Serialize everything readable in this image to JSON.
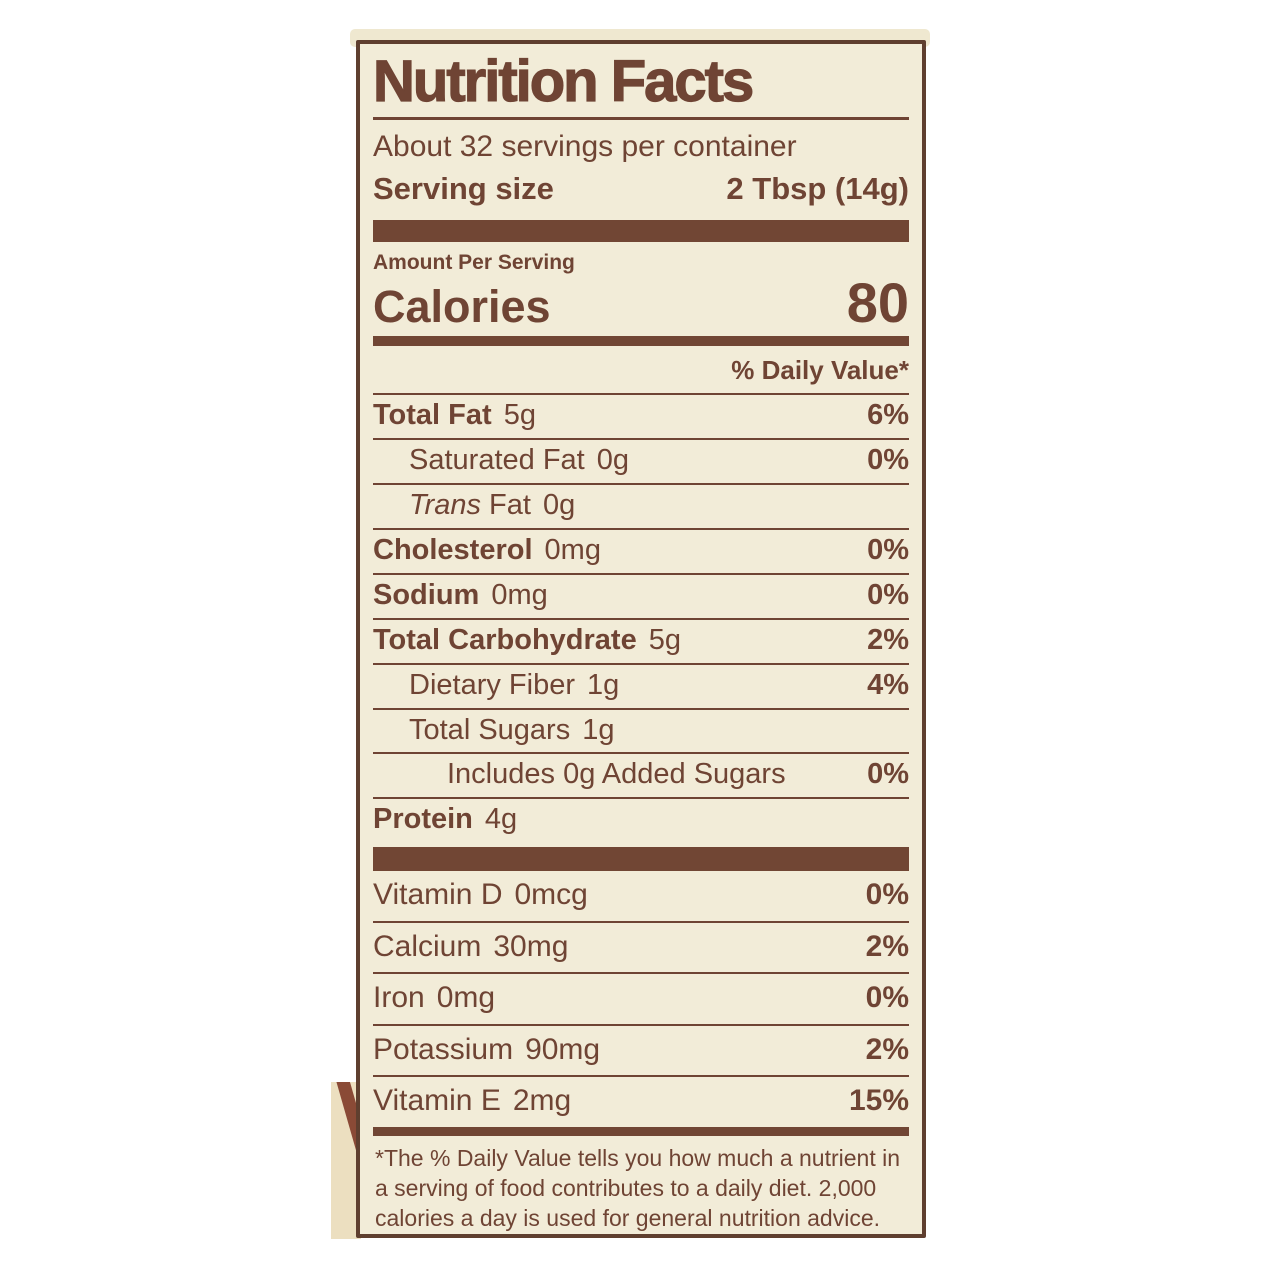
{
  "colors": {
    "text_brown": "#6f4434",
    "bar_brown": "#714634",
    "border_brown": "#5f3f2f",
    "panel_cream": "#f2ecd8",
    "package_tan": "#ecdfc0",
    "stripe_red_brown": "#8a4a36",
    "page_background": "#ffffff"
  },
  "header": {
    "title": "Nutrition Facts",
    "servings_per_container": "About 32 servings per container",
    "serving_size_label": "Serving size",
    "serving_size_value": "2 Tbsp (14g)"
  },
  "calories": {
    "amount_per_serving": "Amount Per Serving",
    "label": "Calories",
    "value": "80"
  },
  "daily_value_header": "% Daily Value*",
  "nutrients": [
    {
      "label": "Total Fat",
      "amount": "5g",
      "dv": "6%"
    },
    {
      "label": "Saturated Fat",
      "amount": "0g",
      "dv": "0%"
    },
    {
      "label_italic": "Trans",
      "label_rest": " Fat",
      "amount": "0g",
      "dv": ""
    },
    {
      "label": "Cholesterol",
      "amount": "0mg",
      "dv": "0%"
    },
    {
      "label": "Sodium",
      "amount": "0mg",
      "dv": "0%"
    },
    {
      "label": "Total Carbohydrate",
      "amount": "5g",
      "dv": "2%"
    },
    {
      "label": "Dietary Fiber",
      "amount": "1g",
      "dv": "4%"
    },
    {
      "label": "Total Sugars",
      "amount": "1g",
      "dv": ""
    },
    {
      "label": "Includes 0g Added Sugars",
      "amount": "",
      "dv": "0%"
    },
    {
      "label": "Protein",
      "amount": "4g",
      "dv": ""
    }
  ],
  "vitamins": [
    {
      "label": "Vitamin D",
      "amount": "0mcg",
      "dv": "0%"
    },
    {
      "label": "Calcium",
      "amount": "30mg",
      "dv": "2%"
    },
    {
      "label": "Iron",
      "amount": "0mg",
      "dv": "0%"
    },
    {
      "label": "Potassium",
      "amount": "90mg",
      "dv": "2%"
    },
    {
      "label": "Vitamin E",
      "amount": "2mg",
      "dv": "15%"
    }
  ],
  "footnote": "*The % Daily Value tells you how much a nutrient in a serving of food contributes to a daily diet. 2,000 calories a day is used for general nutrition advice."
}
